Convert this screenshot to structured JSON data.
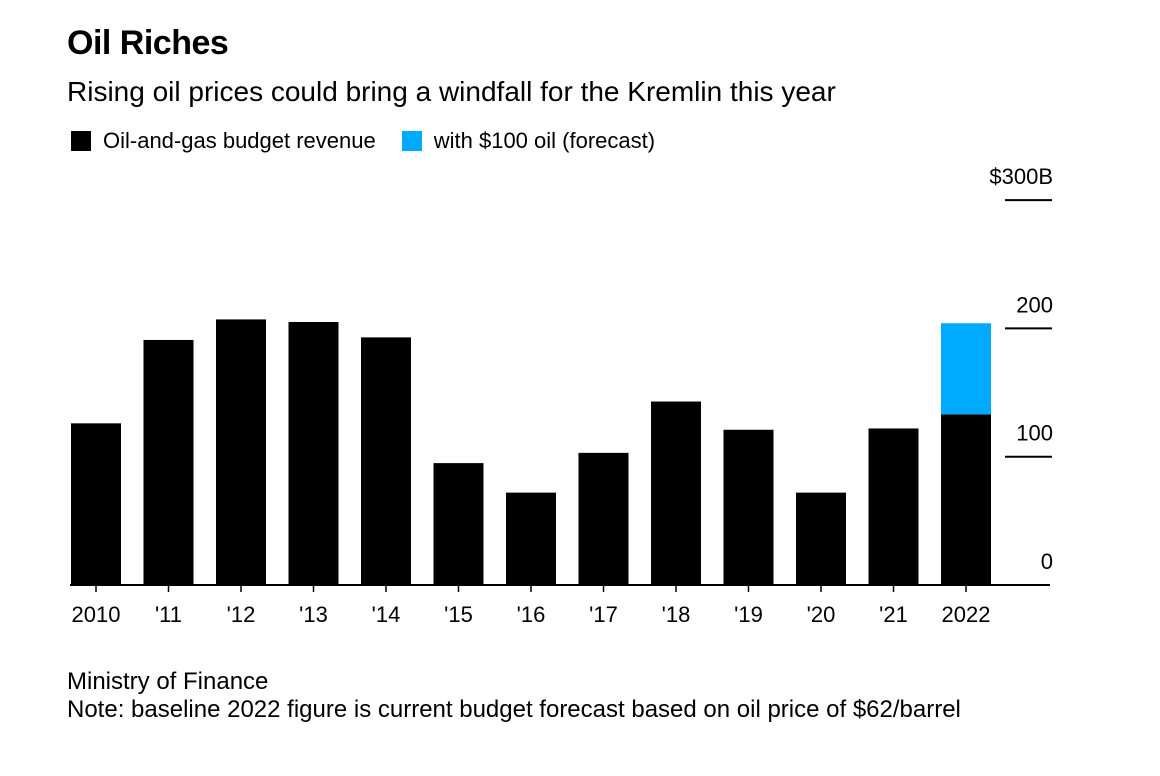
{
  "title": "Oil Riches",
  "subtitle": "Rising oil prices could bring a windfall for the Kremlin this year",
  "legend": [
    {
      "label": "Oil-and-gas budget revenue",
      "color": "#000000"
    },
    {
      "label": "with $100 oil (forecast)",
      "color": "#00aaff"
    }
  ],
  "source": "Ministry of Finance",
  "note": "Note: baseline 2022 figure is current budget forecast based on oil price of $62/barrel",
  "chart_data": {
    "type": "bar",
    "stacked": true,
    "categories": [
      "2010",
      "'11",
      "'12",
      "'13",
      "'14",
      "'15",
      "'16",
      "'17",
      "'18",
      "'19",
      "'20",
      "'21",
      "2022"
    ],
    "series": [
      {
        "name": "Oil-and-gas budget revenue",
        "color": "#000000",
        "values": [
          126,
          191,
          207,
          205,
          193,
          95,
          72,
          103,
          143,
          121,
          72,
          122,
          133
        ]
      },
      {
        "name": "with $100 oil (forecast)",
        "color": "#00aaff",
        "values": [
          0,
          0,
          0,
          0,
          0,
          0,
          0,
          0,
          0,
          0,
          0,
          0,
          71
        ]
      }
    ],
    "ylim": [
      0,
      300
    ],
    "yticks": [
      0,
      100,
      200,
      300
    ],
    "ytick_labels": [
      "0",
      "100",
      "200",
      "$300B"
    ],
    "yaxis_position": "right",
    "grid": false,
    "legend_position": "top-left"
  }
}
